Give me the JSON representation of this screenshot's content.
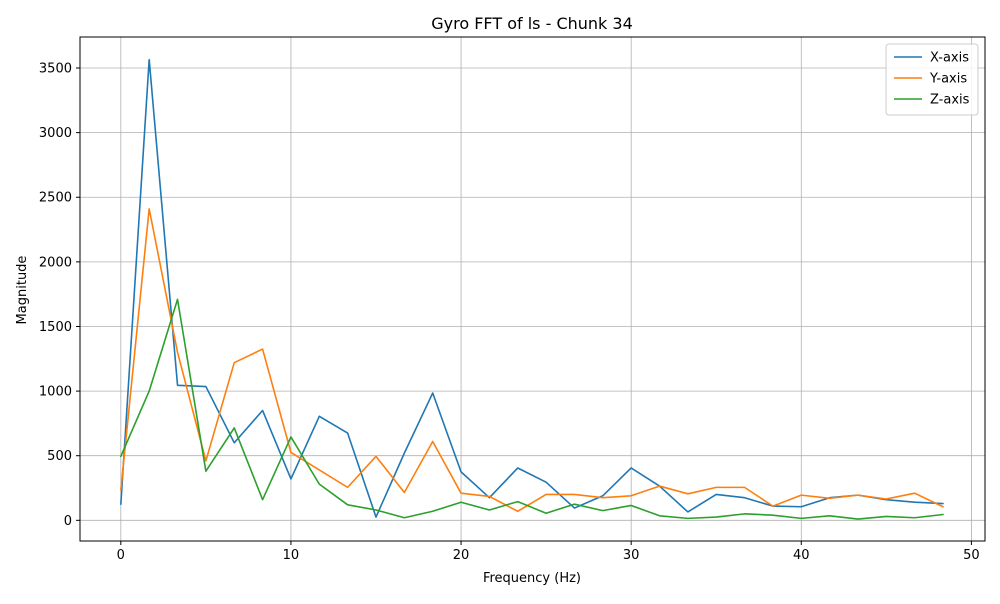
{
  "chart_data": {
    "type": "line",
    "title": "Gyro FFT of ls - Chunk 34",
    "xlabel": "Frequency (Hz)",
    "ylabel": "Magnitude",
    "xlim": [
      -2.4,
      50.8
    ],
    "ylim": [
      -160,
      3740
    ],
    "xticks": [
      0,
      10,
      20,
      30,
      40,
      50
    ],
    "yticks": [
      0,
      500,
      1000,
      1500,
      2000,
      2500,
      3000,
      3500
    ],
    "grid": true,
    "legend_position": "top-right",
    "x": [
      0,
      1.667,
      3.333,
      5.0,
      6.667,
      8.333,
      10.0,
      11.667,
      13.333,
      15.0,
      16.667,
      18.333,
      20.0,
      21.667,
      23.333,
      25.0,
      26.667,
      28.333,
      30.0,
      31.667,
      33.333,
      35.0,
      36.667,
      38.333,
      40.0,
      41.667,
      43.333,
      45.0,
      46.667,
      48.333
    ],
    "series": [
      {
        "name": "X-axis",
        "color": "#1f77b4",
        "values": [
          125,
          3565,
          1045,
          1035,
          600,
          850,
          320,
          805,
          675,
          25,
          520,
          985,
          375,
          175,
          405,
          295,
          95,
          190,
          405,
          265,
          65,
          200,
          175,
          110,
          105,
          175,
          195,
          160,
          140,
          130
        ]
      },
      {
        "name": "Y-axis",
        "color": "#ff7f0e",
        "values": [
          235,
          2410,
          1300,
          460,
          1220,
          1325,
          525,
          390,
          255,
          495,
          215,
          610,
          210,
          185,
          70,
          200,
          200,
          175,
          190,
          265,
          205,
          255,
          255,
          110,
          195,
          170,
          195,
          165,
          210,
          105
        ]
      },
      {
        "name": "Z-axis",
        "color": "#2ca02c",
        "values": [
          495,
          1000,
          1710,
          380,
          715,
          160,
          645,
          280,
          120,
          80,
          20,
          70,
          140,
          80,
          145,
          55,
          125,
          75,
          115,
          35,
          15,
          25,
          50,
          40,
          15,
          35,
          10,
          30,
          20,
          45
        ]
      }
    ]
  }
}
